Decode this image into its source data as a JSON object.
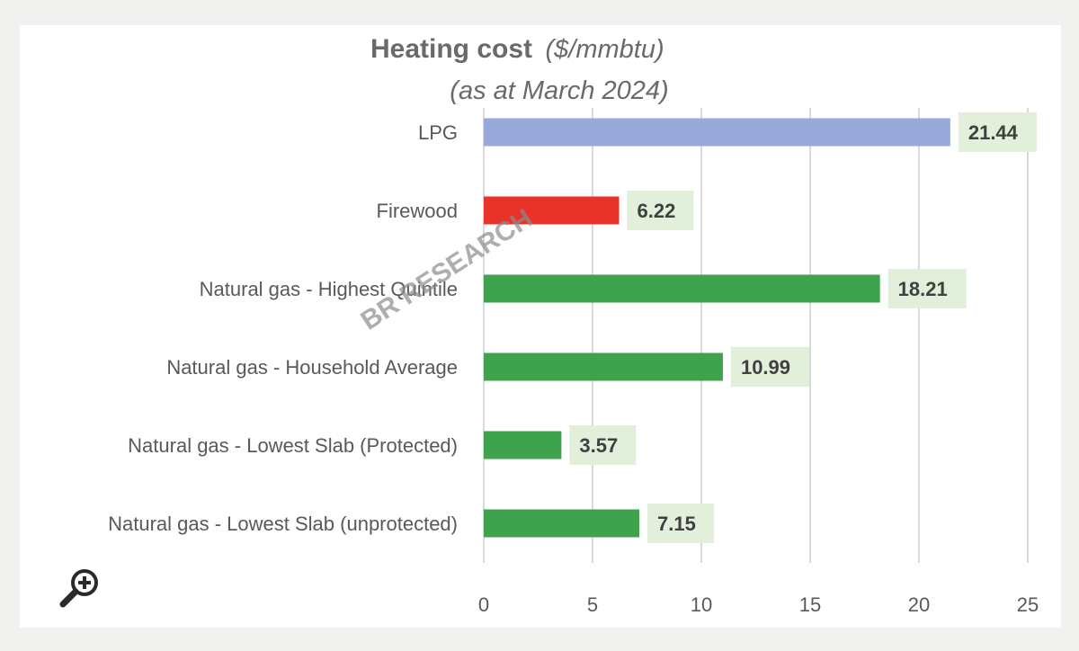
{
  "chart_data": {
    "type": "bar",
    "orientation": "horizontal",
    "title": "Heating cost",
    "title_unit": "($/mmbtu)",
    "subtitle": "(as at March 2024)",
    "categories": [
      "LPG",
      "Firewood",
      "Natural gas - Highest Quintile",
      "Natural gas - Household Average",
      "Natural gas - Lowest Slab (Protected)",
      "Natural gas - Lowest Slab (unprotected)"
    ],
    "values": [
      21.44,
      6.22,
      18.21,
      10.99,
      3.57,
      7.15
    ],
    "value_labels": [
      "21.44",
      "6.22",
      "18.21",
      "10.99",
      "3.57",
      "7.15"
    ],
    "bar_colors": [
      "#98a8d8",
      "#e8322a",
      "#3fa34d",
      "#3fa34d",
      "#3fa34d",
      "#3fa34d"
    ],
    "xlim": [
      0,
      25
    ],
    "x_ticks": [
      "0",
      "5",
      "10",
      "15",
      "20",
      "25"
    ],
    "grid": true,
    "xlabel": "",
    "ylabel": ""
  },
  "watermark": "BR RESEARCH",
  "icons": {
    "zoom": "zoom-in-icon"
  }
}
